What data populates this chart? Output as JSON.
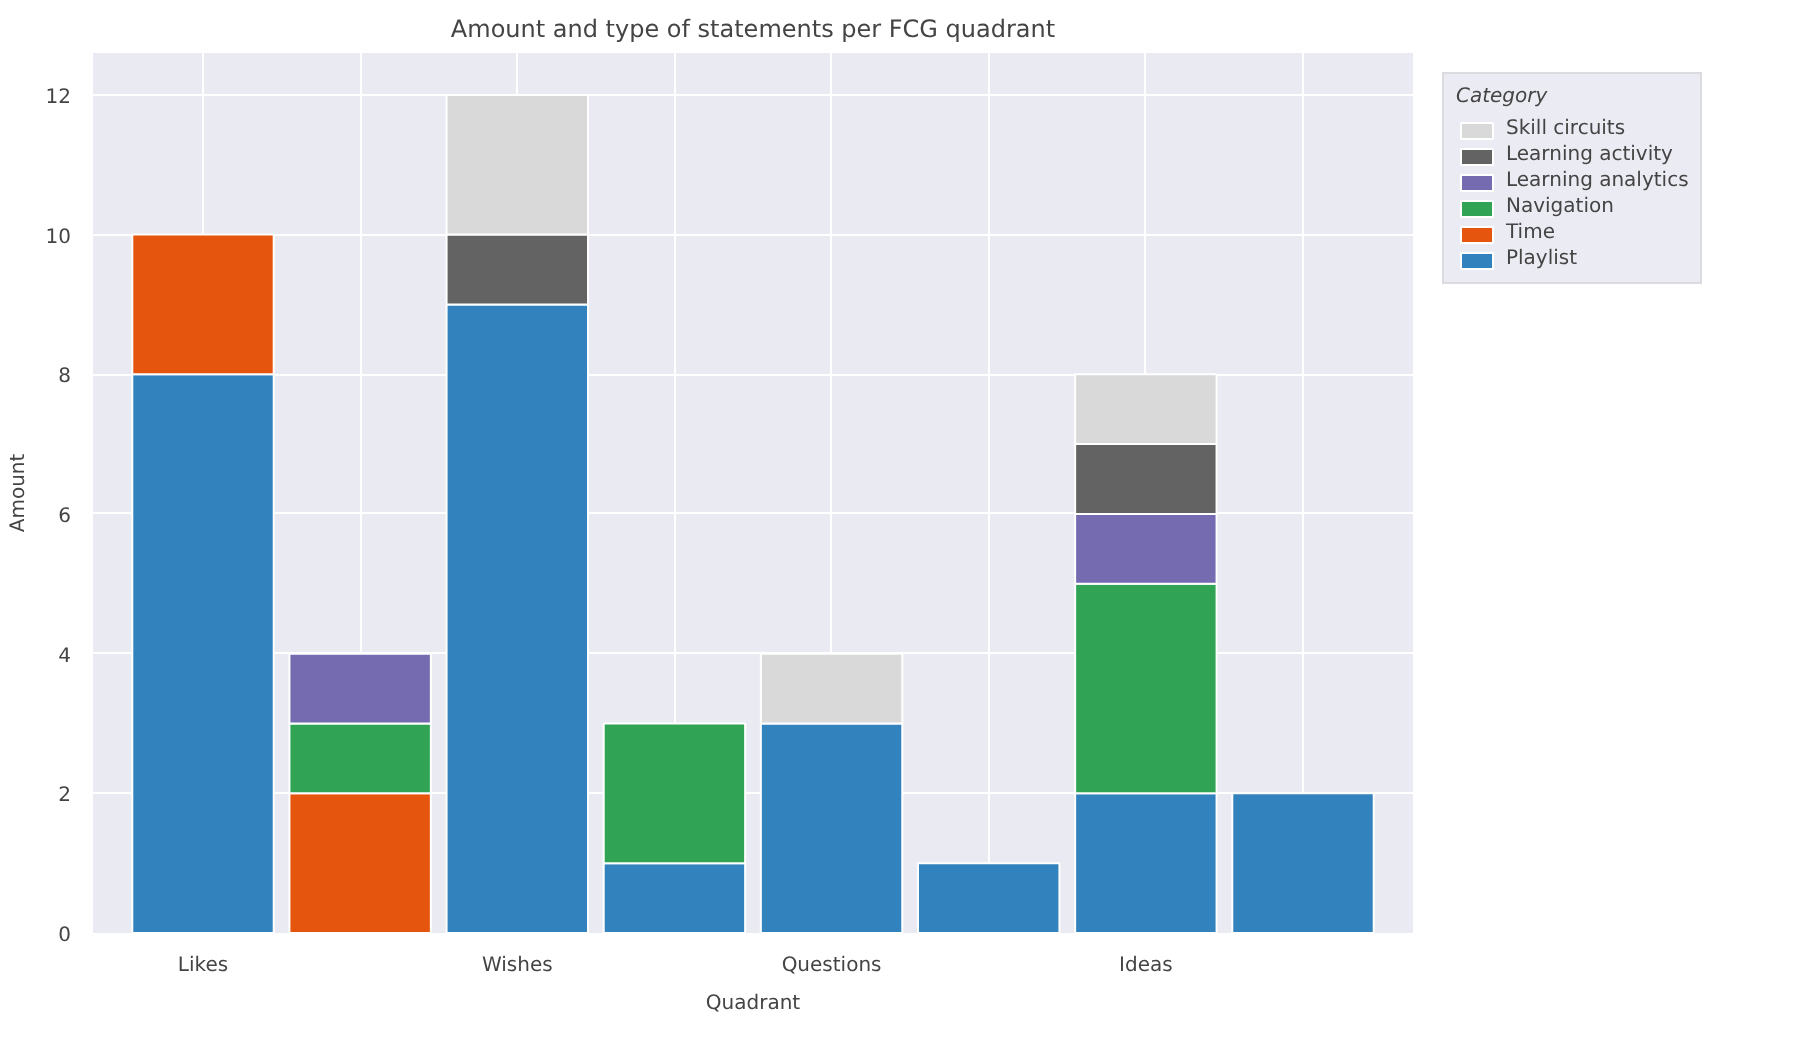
{
  "chart_data": {
    "type": "bar",
    "stacked": true,
    "title": "Amount and type of statements per FCG quadrant",
    "xlabel": "Quadrant",
    "ylabel": "Amount",
    "legend_title": "Category",
    "legend": "right",
    "grid": true,
    "categories": [
      "Likes",
      null,
      "Wishes",
      null,
      "Questions",
      null,
      "Ideas",
      null
    ],
    "ylim": [
      0,
      12.6
    ],
    "yticks": [
      0,
      2,
      4,
      6,
      8,
      10,
      12
    ],
    "series": [
      {
        "name": "Playlist",
        "color": "#3182bd",
        "values": [
          8,
          null,
          9,
          1,
          3,
          1,
          2,
          2
        ]
      },
      {
        "name": "Time",
        "color": "#e6550d",
        "values": [
          2,
          2,
          null,
          null,
          null,
          null,
          null,
          null
        ]
      },
      {
        "name": "Navigation",
        "color": "#31a354",
        "values": [
          null,
          1,
          null,
          2,
          null,
          null,
          3,
          null
        ]
      },
      {
        "name": "Learning analytics",
        "color": "#756bb1",
        "values": [
          null,
          1,
          null,
          null,
          null,
          null,
          1,
          null
        ]
      },
      {
        "name": "Learning activity",
        "color": "#636363",
        "values": [
          null,
          null,
          1,
          null,
          null,
          null,
          1,
          null
        ]
      },
      {
        "name": "Skill circuits",
        "color": "#d9d9d9",
        "values": [
          null,
          null,
          2,
          null,
          1,
          null,
          1,
          null
        ]
      }
    ]
  }
}
